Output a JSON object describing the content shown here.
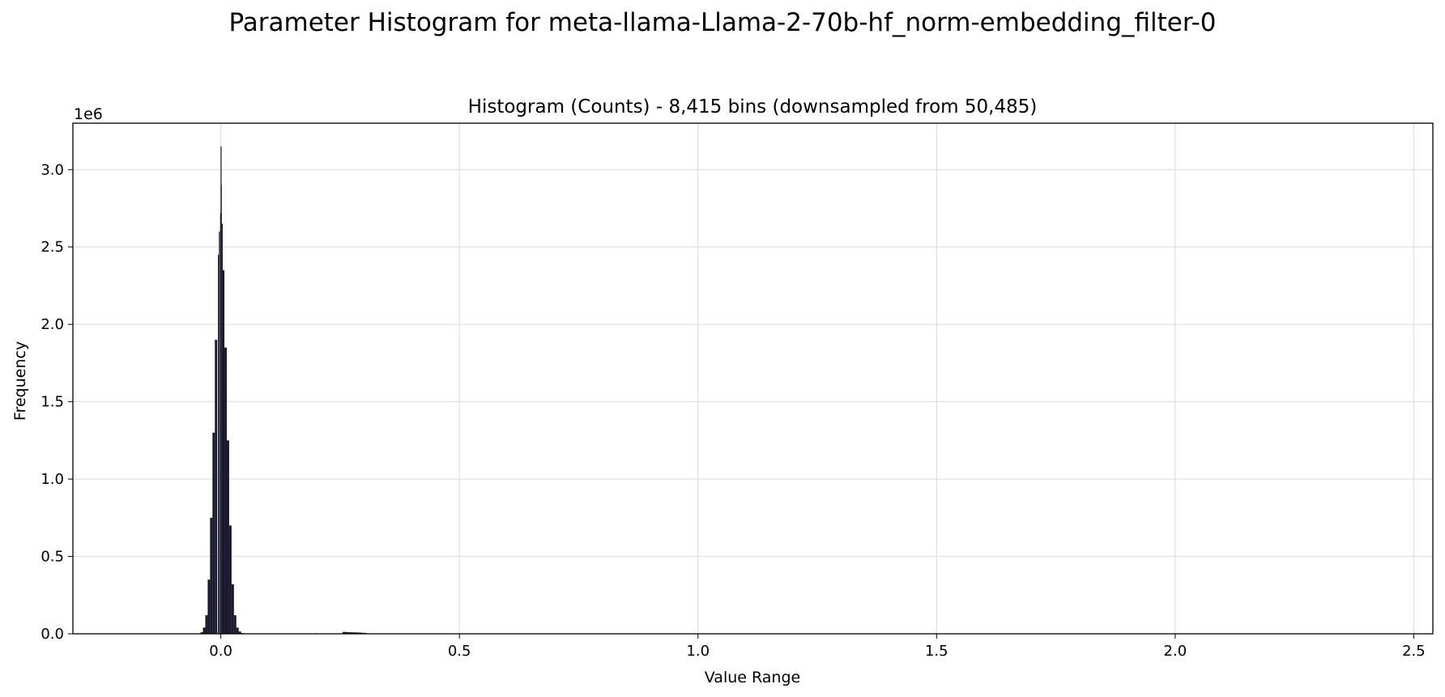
{
  "figure": {
    "suptitle": "Parameter Histogram for meta-llama-Llama-2-70b-hf_norm-embedding_filter-0"
  },
  "chart_data": {
    "type": "bar",
    "title": "Histogram (Counts) - 8,415 bins (downsampled from 50,485)",
    "xlabel": "Value Range",
    "ylabel": "Frequency",
    "y_offset_label": "1e6",
    "xlim": [
      -0.31,
      2.54
    ],
    "ylim": [
      0,
      3.3
    ],
    "y_scale_multiplier": 1000000,
    "xticks": [
      0.0,
      0.5,
      1.0,
      1.5,
      2.0,
      2.5
    ],
    "xtick_labels": [
      "0.0",
      "0.5",
      "1.0",
      "1.5",
      "2.0",
      "2.5"
    ],
    "yticks": [
      0.0,
      0.5,
      1.0,
      1.5,
      2.0,
      2.5,
      3.0
    ],
    "ytick_labels": [
      "0.0",
      "0.5",
      "1.0",
      "1.5",
      "2.0",
      "2.5",
      "3.0"
    ],
    "grid": true,
    "bar_color": "#1a1a2e",
    "x": [
      -0.04,
      -0.035,
      -0.03,
      -0.025,
      -0.02,
      -0.015,
      -0.01,
      -0.005,
      -0.003,
      -0.001,
      0.0,
      0.001,
      0.003,
      0.005,
      0.01,
      0.015,
      0.02,
      0.025,
      0.03,
      0.035,
      0.04,
      0.045,
      0.2,
      0.26,
      0.27,
      0.28,
      0.29,
      0.3
    ],
    "values": [
      0.01,
      0.04,
      0.12,
      0.35,
      0.75,
      1.3,
      1.9,
      2.45,
      2.6,
      2.72,
      3.15,
      2.9,
      2.65,
      2.35,
      1.85,
      1.25,
      0.7,
      0.32,
      0.12,
      0.04,
      0.015,
      0.005,
      0.003,
      0.012,
      0.01,
      0.009,
      0.008,
      0.006
    ]
  }
}
